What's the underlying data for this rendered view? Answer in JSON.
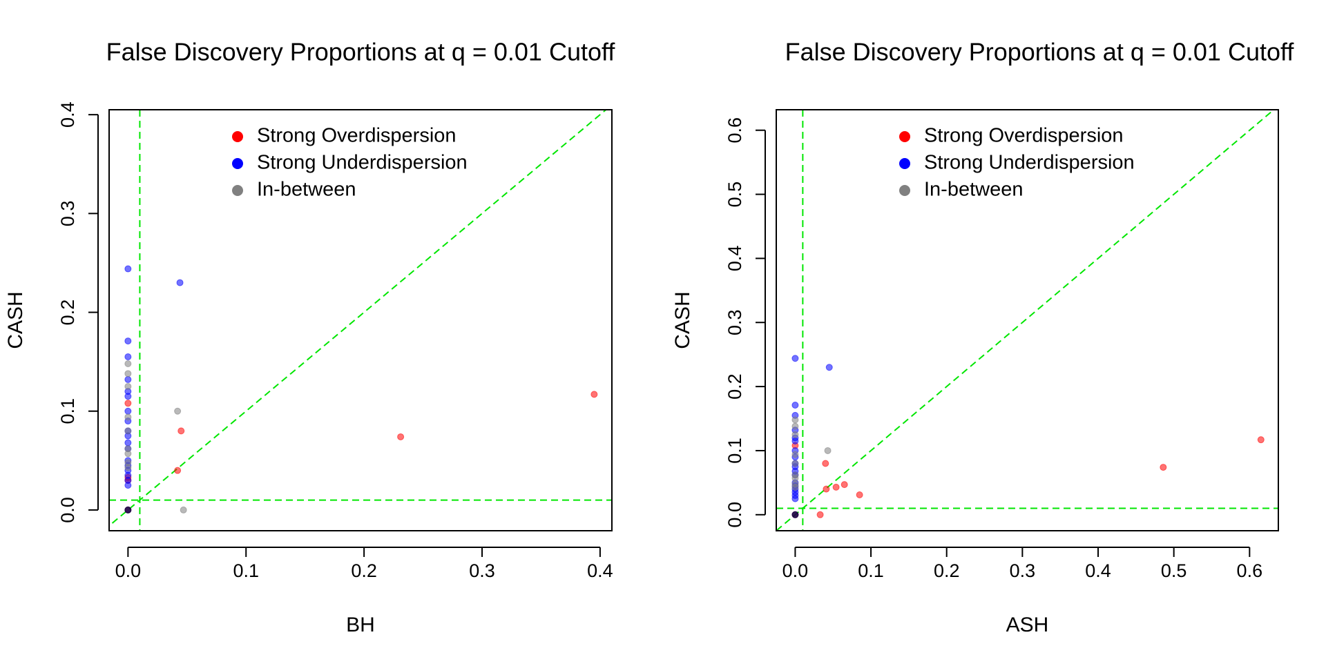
{
  "colors": {
    "strong_over": "#ff0000",
    "strong_under": "#0000ff",
    "in_between": "#808080",
    "reference_lines": "#00e600",
    "axes": "#000000"
  },
  "chart_data": [
    {
      "type": "scatter",
      "title": "False Discovery Proportions at q = 0.01 Cutoff",
      "xlabel": "BH",
      "ylabel": "CASH",
      "xlim": [
        -0.016,
        0.41
      ],
      "ylim": [
        -0.021,
        0.405
      ],
      "xticks": [
        0.0,
        0.1,
        0.2,
        0.3,
        0.4
      ],
      "xtick_labels": [
        "0.0",
        "0.1",
        "0.2",
        "0.3",
        "0.4"
      ],
      "yticks": [
        0.0,
        0.1,
        0.2,
        0.3,
        0.4
      ],
      "ytick_labels": [
        "0.0",
        "0.1",
        "0.2",
        "0.3",
        "0.4"
      ],
      "reference_lines": {
        "vline": 0.01,
        "hline": 0.01,
        "diagonal": true
      },
      "legend": {
        "position": "top",
        "entries": [
          {
            "label": "Strong Overdispersion",
            "color_key": "strong_over"
          },
          {
            "label": "Strong Underdispersion",
            "color_key": "strong_under"
          },
          {
            "label": "In-between",
            "color_key": "in_between"
          }
        ]
      },
      "series": [
        {
          "name": "Strong Overdispersion",
          "color_key": "strong_over",
          "x": [
            0.395,
            0.231,
            0.045,
            0.042,
            0.0,
            0.0,
            0.0,
            0.0
          ],
          "y": [
            0.117,
            0.074,
            0.08,
            0.04,
            0.108,
            0.033,
            0.03,
            0.0
          ]
        },
        {
          "name": "Strong Underdispersion",
          "color_key": "strong_under",
          "x": [
            0.0,
            0.044,
            0.0,
            0.0,
            0.0,
            0.0,
            0.0,
            0.0,
            0.0,
            0.0,
            0.0,
            0.0,
            0.0,
            0.0,
            0.0,
            0.0,
            0.0,
            0.0,
            0.0,
            0.0
          ],
          "y": [
            0.244,
            0.23,
            0.171,
            0.155,
            0.132,
            0.12,
            0.115,
            0.1,
            0.09,
            0.08,
            0.075,
            0.068,
            0.062,
            0.05,
            0.045,
            0.04,
            0.035,
            0.03,
            0.025,
            0.0
          ]
        },
        {
          "name": "In-between",
          "color_key": "in_between",
          "x": [
            0.042,
            0.047,
            0.0,
            0.0,
            0.0,
            0.0,
            0.0,
            0.0,
            0.0,
            0.0,
            0.0,
            0.0
          ],
          "y": [
            0.1,
            0.0,
            0.148,
            0.138,
            0.125,
            0.094,
            0.08,
            0.062,
            0.057,
            0.048,
            0.043,
            0.0
          ]
        }
      ]
    },
    {
      "type": "scatter",
      "title": "False Discovery Proportions at q = 0.01 Cutoff",
      "xlabel": "ASH",
      "ylabel": "CASH",
      "xlim": [
        -0.025,
        0.638
      ],
      "ylim": [
        -0.025,
        0.632
      ],
      "xticks": [
        0.0,
        0.1,
        0.2,
        0.3,
        0.4,
        0.5,
        0.6
      ],
      "xtick_labels": [
        "0.0",
        "0.1",
        "0.2",
        "0.3",
        "0.4",
        "0.5",
        "0.6"
      ],
      "yticks": [
        0.0,
        0.1,
        0.2,
        0.3,
        0.4,
        0.5,
        0.6
      ],
      "ytick_labels": [
        "0.0",
        "0.1",
        "0.2",
        "0.3",
        "0.4",
        "0.5",
        "0.6"
      ],
      "reference_lines": {
        "vline": 0.01,
        "hline": 0.01,
        "diagonal": true
      },
      "legend": {
        "position": "top",
        "entries": [
          {
            "label": "Strong Overdispersion",
            "color_key": "strong_over"
          },
          {
            "label": "Strong Underdispersion",
            "color_key": "strong_under"
          },
          {
            "label": "In-between",
            "color_key": "in_between"
          }
        ]
      },
      "series": [
        {
          "name": "Strong Overdispersion",
          "color_key": "strong_over",
          "x": [
            0.615,
            0.486,
            0.085,
            0.065,
            0.054,
            0.04,
            0.041,
            0.033,
            0.0,
            0.0
          ],
          "y": [
            0.117,
            0.074,
            0.031,
            0.047,
            0.043,
            0.08,
            0.04,
            0.0,
            0.108,
            0.0
          ]
        },
        {
          "name": "Strong Underdispersion",
          "color_key": "strong_under",
          "x": [
            0.0,
            0.045,
            0.0,
            0.0,
            0.0,
            0.0,
            0.0,
            0.0,
            0.0,
            0.0,
            0.0,
            0.0,
            0.0,
            0.0,
            0.0,
            0.0,
            0.0,
            0.0,
            0.0,
            0.0
          ],
          "y": [
            0.244,
            0.23,
            0.171,
            0.155,
            0.132,
            0.12,
            0.115,
            0.1,
            0.09,
            0.08,
            0.075,
            0.068,
            0.062,
            0.05,
            0.045,
            0.04,
            0.035,
            0.03,
            0.025,
            0.0
          ]
        },
        {
          "name": "In-between",
          "color_key": "in_between",
          "x": [
            0.043,
            0.0,
            0.0,
            0.0,
            0.0,
            0.0,
            0.0,
            0.0,
            0.0,
            0.0,
            0.0
          ],
          "y": [
            0.1,
            0.148,
            0.138,
            0.125,
            0.094,
            0.08,
            0.062,
            0.057,
            0.048,
            0.043,
            0.0
          ]
        }
      ]
    }
  ]
}
